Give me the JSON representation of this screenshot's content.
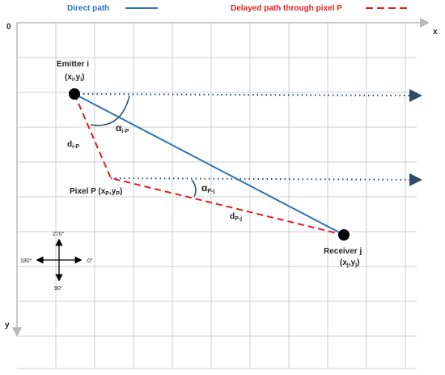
{
  "legend": {
    "direct_label": "Direct path",
    "delayed_label": "Delayed path through pixel P",
    "direct_color": "#2e75b6",
    "delayed_color": "#e02020"
  },
  "axes": {
    "origin": "0",
    "x": "x",
    "y": "y"
  },
  "emitter": {
    "name": "Emitter i",
    "coord_open": "(x",
    "coord_sub1": "i",
    "coord_mid": ",y",
    "coord_sub2": "i",
    "coord_close": ")"
  },
  "receiver": {
    "name": "Receiver j",
    "coord_open": "(x",
    "coord_sub1": "j",
    "coord_mid": ",y",
    "coord_sub2": "j",
    "coord_close": ")"
  },
  "pixel": {
    "name": "Pixel P (x",
    "sub1": "P",
    "mid": ",y",
    "sub2": "P",
    "close": ")"
  },
  "angles": {
    "alpha_ip": {
      "symbol": "α",
      "sub": "i-P"
    },
    "alpha_pj": {
      "symbol": "α",
      "sub": "P-j"
    }
  },
  "distances": {
    "d_ip": {
      "symbol": "d",
      "sub": "i-P"
    },
    "d_pj": {
      "symbol": "d",
      "sub": "P-j"
    }
  },
  "compass": {
    "north": "270°",
    "east": "0°",
    "south": "90°",
    "west": "180°"
  }
}
